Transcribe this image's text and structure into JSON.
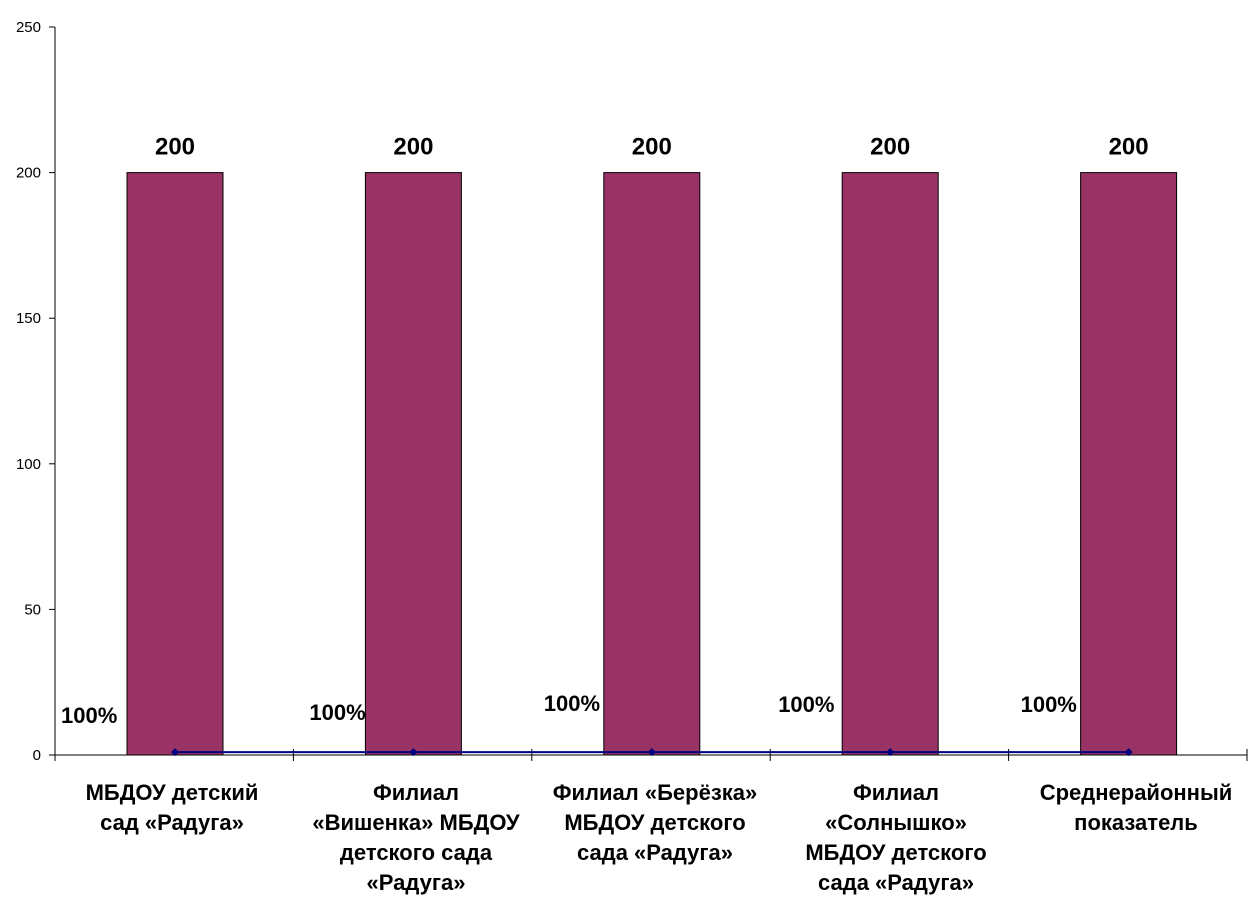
{
  "chart_data": {
    "type": "bar",
    "title": "",
    "xlabel": "",
    "ylabel": "",
    "ylim": [
      0,
      250
    ],
    "yticks": [
      0,
      50,
      100,
      150,
      200,
      250
    ],
    "grid": false,
    "legend": "none",
    "categories": [
      [
        "МБДОУ детский",
        "сад  «Радуга»"
      ],
      [
        "Филиал",
        "«Вишенка» МБДОУ",
        "детского сада",
        "«Радуга»"
      ],
      [
        "Филиал  «Берёзка»",
        "МБДОУ детского",
        "сада «Радуга»"
      ],
      [
        "Филиал",
        "«Солнышко»",
        "МБДОУ детского",
        "сада «Радуга»"
      ],
      [
        "Среднерайонный",
        "показатель"
      ]
    ],
    "series": [
      {
        "type": "bar",
        "values": [
          200,
          200,
          200,
          200,
          200
        ],
        "labels": [
          "200",
          "200",
          "200",
          "200",
          "200"
        ],
        "color": "#993366"
      },
      {
        "type": "line",
        "values": [
          1,
          1,
          1,
          1,
          1
        ],
        "labels": [
          "100%",
          "100%",
          "100%",
          "100%",
          "100%"
        ],
        "color": "#000080"
      }
    ]
  }
}
